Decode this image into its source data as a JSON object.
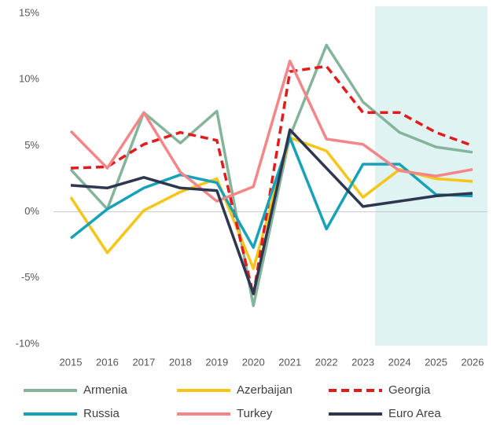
{
  "chart_data": {
    "type": "line",
    "x": [
      2015,
      2016,
      2017,
      2018,
      2019,
      2020,
      2021,
      2022,
      2023,
      2024,
      2025,
      2026
    ],
    "xlim": [
      2015,
      2026
    ],
    "xticks": [
      2015,
      2016,
      2017,
      2018,
      2019,
      2020,
      2021,
      2022,
      2023,
      2024,
      2025,
      2026
    ],
    "ylim": [
      -10,
      15
    ],
    "yticks": [
      {
        "value": -10,
        "label": "-10%"
      },
      {
        "value": -5,
        "label": "-5%"
      },
      {
        "value": 0,
        "label": "0%"
      },
      {
        "value": 5,
        "label": "5%"
      },
      {
        "value": 10,
        "label": "10%"
      },
      {
        "value": 15,
        "label": "15%"
      }
    ],
    "series": [
      {
        "name": "Armenia",
        "color": "#84b59b",
        "style": "solid",
        "values": [
          3.2,
          0.2,
          7.5,
          5.2,
          7.6,
          -7.1,
          5.7,
          12.6,
          8.3,
          6.0,
          4.9,
          4.5
        ]
      },
      {
        "name": "Azerbaijan",
        "color": "#f5c518",
        "style": "solid",
        "values": [
          1.1,
          -3.1,
          0.1,
          1.5,
          2.5,
          -4.3,
          5.6,
          4.6,
          1.1,
          3.2,
          2.5,
          2.3
        ]
      },
      {
        "name": "Georgia",
        "color": "#e31b1b",
        "style": "dashed",
        "values": [
          3.3,
          3.4,
          5.1,
          6.0,
          5.4,
          -6.3,
          10.6,
          11.0,
          7.5,
          7.5,
          6.0,
          5.0
        ]
      },
      {
        "name": "Russia",
        "color": "#17a2b8",
        "style": "solid",
        "values": [
          -2.0,
          0.2,
          1.8,
          2.8,
          2.2,
          -2.7,
          5.6,
          -1.3,
          3.6,
          3.6,
          1.3,
          1.2
        ]
      },
      {
        "name": "Turkey",
        "color": "#f4868a",
        "style": "solid",
        "values": [
          6.1,
          3.3,
          7.5,
          3.0,
          0.8,
          1.9,
          11.4,
          5.5,
          5.1,
          3.1,
          2.7,
          3.2
        ]
      },
      {
        "name": "Euro Area",
        "color": "#2e3650",
        "style": "solid",
        "values": [
          2.0,
          1.8,
          2.6,
          1.8,
          1.6,
          -6.2,
          6.2,
          3.3,
          0.4,
          0.8,
          1.2,
          1.4
        ]
      }
    ]
  }
}
